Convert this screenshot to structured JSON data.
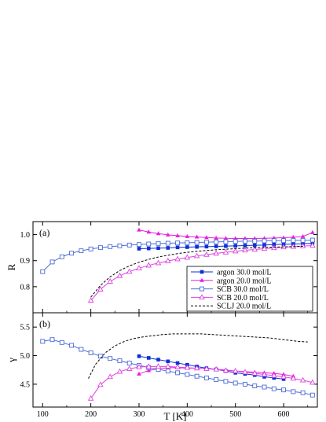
{
  "chart_data": [
    {
      "type": "line",
      "panel_label": "(a)",
      "ylabel": "R",
      "xlabel": "",
      "xlim": [
        80,
        670
      ],
      "ylim": [
        0.7,
        1.05
      ],
      "xticks": [
        100,
        200,
        300,
        400,
        500,
        600
      ],
      "yticks": [
        0.8,
        0.9,
        1.0
      ],
      "ytick_labels": [
        "0.8",
        "0.9",
        "1.0"
      ],
      "legend_position": "bottom-right",
      "series": [
        {
          "name": "argon 30.0 mol/L",
          "color": "#0b2ed6",
          "marker": "square-filled",
          "line": "solid",
          "x": [
            300,
            320,
            340,
            360,
            380,
            400,
            420,
            440,
            460,
            480,
            500,
            520,
            540,
            560,
            580,
            600,
            620,
            640,
            660
          ],
          "y": [
            0.946,
            0.947,
            0.948,
            0.949,
            0.951,
            0.952,
            0.953,
            0.954,
            0.955,
            0.956,
            0.957,
            0.958,
            0.959,
            0.96,
            0.962,
            0.963,
            0.964,
            0.965,
            0.967
          ]
        },
        {
          "name": "argon 20.0 mol/L",
          "color": "#e81ee0",
          "marker": "triangle-filled",
          "line": "solid",
          "x": [
            300,
            320,
            340,
            360,
            380,
            400,
            420,
            440,
            460,
            480,
            500,
            520,
            540,
            560,
            580,
            600,
            620,
            640,
            660
          ],
          "y": [
            1.018,
            1.01,
            1.004,
            0.999,
            0.996,
            0.993,
            0.991,
            0.989,
            0.987,
            0.986,
            0.985,
            0.985,
            0.985,
            0.986,
            0.987,
            0.988,
            0.99,
            0.993,
            1.008
          ]
        },
        {
          "name": "SCB 30.0 mol/L",
          "color": "#4a6bd6",
          "marker": "square-open",
          "line": "solid",
          "x": [
            100,
            120,
            140,
            160,
            180,
            200,
            220,
            240,
            260,
            280,
            300,
            320,
            340,
            360,
            380,
            400,
            420,
            440,
            460,
            480,
            500,
            520,
            540,
            560,
            580,
            600,
            620,
            640,
            660
          ],
          "y": [
            0.858,
            0.895,
            0.915,
            0.929,
            0.938,
            0.945,
            0.95,
            0.954,
            0.957,
            0.96,
            0.962,
            0.964,
            0.966,
            0.967,
            0.968,
            0.969,
            0.97,
            0.971,
            0.972,
            0.973,
            0.974,
            0.975,
            0.975,
            0.976,
            0.977,
            0.977,
            0.978,
            0.978,
            0.979
          ]
        },
        {
          "name": "SCB 20.0 mol/L",
          "color": "#e040e0",
          "marker": "triangle-open",
          "line": "solid",
          "x": [
            200,
            220,
            240,
            260,
            280,
            300,
            320,
            340,
            360,
            380,
            400,
            420,
            440,
            460,
            480,
            500,
            520,
            540,
            560,
            580,
            600,
            620,
            640,
            660
          ],
          "y": [
            0.747,
            0.79,
            0.82,
            0.842,
            0.858,
            0.871,
            0.882,
            0.891,
            0.899,
            0.906,
            0.912,
            0.918,
            0.923,
            0.928,
            0.932,
            0.936,
            0.94,
            0.943,
            0.946,
            0.949,
            0.952,
            0.954,
            0.956,
            0.958
          ]
        },
        {
          "name": "SCLJ 20.0 mol/L",
          "color": "#000000",
          "marker": "none",
          "line": "dashed",
          "x": [
            200,
            220,
            240,
            260,
            280,
            300,
            320,
            340,
            360,
            380,
            400,
            420,
            440,
            460,
            480,
            500,
            520,
            540,
            560,
            580,
            600,
            620,
            640
          ],
          "y": [
            0.76,
            0.805,
            0.838,
            0.862,
            0.88,
            0.894,
            0.905,
            0.914,
            0.921,
            0.927,
            0.932,
            0.936,
            0.939,
            0.942,
            0.944,
            0.946,
            0.948,
            0.95,
            0.951,
            0.952,
            0.953,
            0.954,
            0.955
          ]
        }
      ]
    },
    {
      "type": "line",
      "panel_label": "(b)",
      "ylabel": "γ",
      "xlabel": "T [K]",
      "xlim": [
        80,
        670
      ],
      "ylim": [
        4.1,
        5.75
      ],
      "xticks": [
        100,
        200,
        300,
        400,
        500,
        600
      ],
      "xtick_labels": [
        "100",
        "200",
        "300",
        "400",
        "500",
        "600"
      ],
      "yticks": [
        4.5,
        5.0,
        5.5
      ],
      "ytick_labels": [
        "4.5",
        "5.0",
        "5.5"
      ],
      "series": [
        {
          "name": "argon 30.0 mol/L",
          "color": "#0b2ed6",
          "marker": "square-filled",
          "line": "solid",
          "x": [
            300,
            320,
            340,
            360,
            380,
            400,
            420,
            440,
            460,
            480,
            500,
            520,
            540,
            560,
            580,
            600
          ],
          "y": [
            4.99,
            4.96,
            4.93,
            4.9,
            4.87,
            4.84,
            4.81,
            4.78,
            4.76,
            4.73,
            4.7,
            4.68,
            4.66,
            4.63,
            4.61,
            4.59
          ]
        },
        {
          "name": "argon 20.0 mol/L",
          "color": "#e81ee0",
          "marker": "triangle-filled",
          "line": "solid",
          "x": [
            300,
            320,
            340,
            360,
            380,
            400,
            420,
            440,
            460,
            480,
            500,
            520,
            540,
            560,
            580,
            600,
            620
          ],
          "y": [
            4.68,
            4.74,
            4.77,
            4.79,
            4.79,
            4.78,
            4.78,
            4.77,
            4.76,
            4.75,
            4.73,
            4.72,
            4.71,
            4.7,
            4.69,
            4.67,
            4.64
          ]
        },
        {
          "name": "SCB 30.0 mol/L",
          "color": "#4a6bd6",
          "marker": "square-open",
          "line": "solid",
          "x": [
            100,
            120,
            140,
            160,
            180,
            200,
            220,
            240,
            260,
            280,
            300,
            320,
            340,
            360,
            380,
            400,
            420,
            440,
            460,
            480,
            500,
            520,
            540,
            560,
            580,
            600,
            620,
            640,
            660
          ],
          "y": [
            5.25,
            5.28,
            5.23,
            5.18,
            5.11,
            5.05,
            4.99,
            4.95,
            4.91,
            4.87,
            4.83,
            4.79,
            4.76,
            4.73,
            4.7,
            4.67,
            4.64,
            4.61,
            4.58,
            4.55,
            4.52,
            4.5,
            4.47,
            4.45,
            4.42,
            4.4,
            4.37,
            4.35,
            4.31
          ]
        },
        {
          "name": "SCB 20.0 mol/L",
          "color": "#e040e0",
          "marker": "triangle-open",
          "line": "solid",
          "x": [
            200,
            220,
            240,
            260,
            280,
            300,
            320,
            340,
            360,
            380,
            400,
            420,
            440,
            460,
            480,
            500,
            520,
            540,
            560,
            580,
            600,
            620,
            640,
            660
          ],
          "y": [
            4.25,
            4.49,
            4.63,
            4.72,
            4.77,
            4.8,
            4.81,
            4.81,
            4.81,
            4.8,
            4.79,
            4.78,
            4.77,
            4.76,
            4.74,
            4.73,
            4.71,
            4.69,
            4.67,
            4.65,
            4.63,
            4.6,
            4.57,
            4.53
          ]
        },
        {
          "name": "SCLJ 20.0 mol/L",
          "color": "#000000",
          "marker": "none",
          "line": "dashed",
          "x": [
            195,
            210,
            230,
            250,
            270,
            290,
            310,
            330,
            350,
            370,
            390,
            410,
            430,
            450,
            470,
            490,
            510,
            530,
            550,
            570,
            590,
            610,
            630,
            650
          ],
          "y": [
            4.6,
            4.85,
            5.05,
            5.17,
            5.25,
            5.3,
            5.33,
            5.35,
            5.37,
            5.38,
            5.38,
            5.38,
            5.38,
            5.37,
            5.36,
            5.35,
            5.34,
            5.33,
            5.32,
            5.31,
            5.29,
            5.27,
            5.25,
            5.24
          ]
        }
      ]
    }
  ]
}
